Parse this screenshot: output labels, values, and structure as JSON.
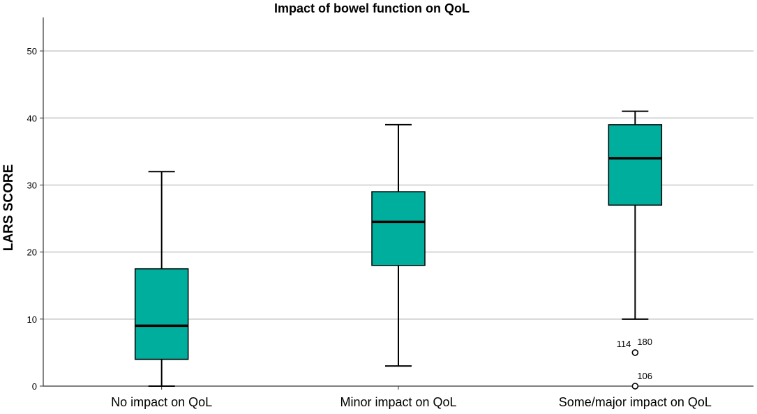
{
  "chart_data": {
    "type": "boxplot",
    "title": "Impact of bowel function on QoL",
    "xlabel": "",
    "ylabel": "LARS SCORE",
    "ylim": [
      0,
      55
    ],
    "yticks": [
      0,
      10,
      20,
      30,
      40,
      50
    ],
    "grid": true,
    "categories": [
      "No impact on QoL",
      "Minor impact on QoL",
      "Some/major impact on QoL"
    ],
    "boxes": [
      {
        "category": "No impact on QoL",
        "whisker_low": 0,
        "q1": 4,
        "median": 9,
        "q3": 17.5,
        "whisker_high": 32,
        "outliers": []
      },
      {
        "category": "Minor impact on QoL",
        "whisker_low": 3,
        "q1": 18,
        "median": 24.5,
        "q3": 29,
        "whisker_high": 39,
        "outliers": []
      },
      {
        "category": "Some/major impact on QoL",
        "whisker_low": 10,
        "q1": 27,
        "median": 34,
        "q3": 39,
        "whisker_high": 41,
        "outliers": [
          {
            "value": 5,
            "labels": [
              "114",
              "180"
            ]
          },
          {
            "value": 0,
            "labels": [
              "106"
            ]
          }
        ]
      }
    ],
    "colors": {
      "box_fill": "#00ae9e",
      "stroke": "#000000",
      "grid": "#c8c8c8",
      "axis": "#333333"
    }
  }
}
